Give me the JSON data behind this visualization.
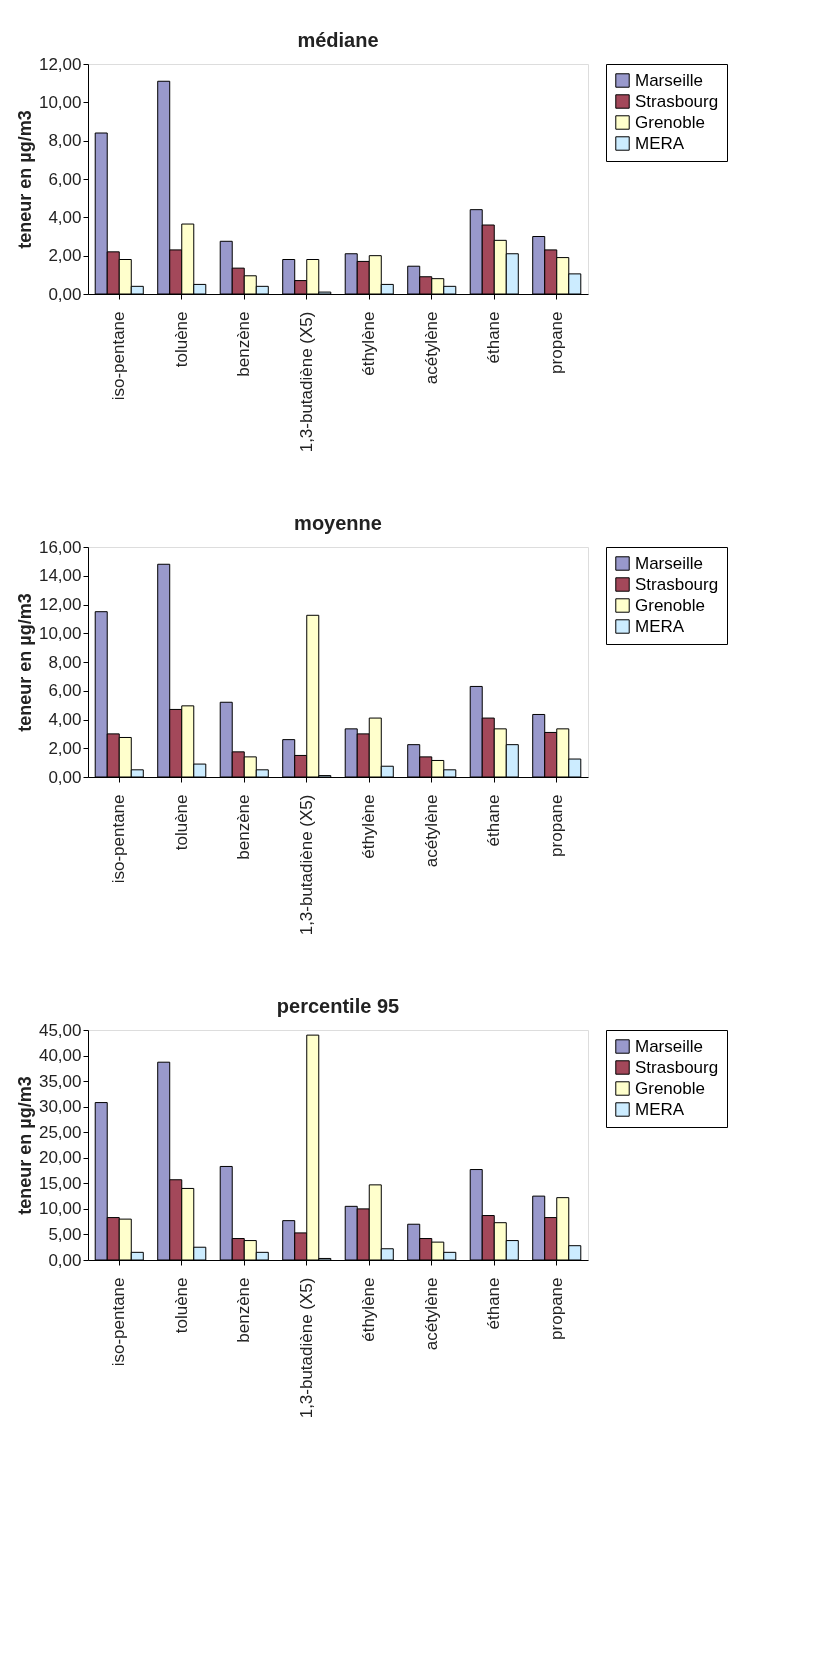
{
  "chart_data": [
    {
      "type": "bar",
      "title": "médiane",
      "ylabel": "teneur en µg/m3",
      "categories": [
        "iso-pentane",
        "toluène",
        "benzène",
        "1,3-butadiène (X5)",
        "éthylène",
        "acétylène",
        "éthane",
        "propane"
      ],
      "ylim": [
        0,
        12
      ],
      "yticks": [
        {
          "value": 0,
          "label": "0,00"
        },
        {
          "value": 2,
          "label": "2,00"
        },
        {
          "value": 4,
          "label": "4,00"
        },
        {
          "value": 6,
          "label": "6,00"
        },
        {
          "value": 8,
          "label": "8,00"
        },
        {
          "value": 10,
          "label": "10,00"
        },
        {
          "value": 12,
          "label": "12,00"
        }
      ],
      "grid": false,
      "legend": "right",
      "series": [
        {
          "name": "Marseille",
          "color": "#9999cc",
          "values": [
            8.4,
            11.1,
            2.75,
            1.8,
            2.1,
            1.45,
            4.4,
            3.0
          ]
        },
        {
          "name": "Strasbourg",
          "color": "#a3485a",
          "values": [
            2.2,
            2.3,
            1.35,
            0.7,
            1.7,
            0.9,
            3.6,
            2.3
          ]
        },
        {
          "name": "Grenoble",
          "color": "#ffffcc",
          "values": [
            1.8,
            3.65,
            0.95,
            1.8,
            2.0,
            0.8,
            2.8,
            1.9
          ]
        },
        {
          "name": "MERA",
          "color": "#ccecff",
          "values": [
            0.4,
            0.5,
            0.4,
            0.1,
            0.5,
            0.4,
            2.1,
            1.05
          ]
        }
      ]
    },
    {
      "type": "bar",
      "title": "moyenne",
      "ylabel": "teneur en µg/m3",
      "categories": [
        "iso-pentane",
        "toluène",
        "benzène",
        "1,3-butadiène (X5)",
        "éthylène",
        "acétylène",
        "éthane",
        "propane"
      ],
      "ylim": [
        0,
        16
      ],
      "yticks": [
        {
          "value": 0,
          "label": "0,00"
        },
        {
          "value": 2,
          "label": "2,00"
        },
        {
          "value": 4,
          "label": "4,00"
        },
        {
          "value": 6,
          "label": "6,00"
        },
        {
          "value": 8,
          "label": "8,00"
        },
        {
          "value": 10,
          "label": "10,00"
        },
        {
          "value": 12,
          "label": "12,00"
        },
        {
          "value": 14,
          "label": "14,00"
        },
        {
          "value": 16,
          "label": "16,00"
        }
      ],
      "grid": false,
      "legend": "right",
      "series": [
        {
          "name": "Marseille",
          "color": "#9999cc",
          "values": [
            11.5,
            14.8,
            5.2,
            2.6,
            3.35,
            2.25,
            6.3,
            4.35
          ]
        },
        {
          "name": "Strasbourg",
          "color": "#a3485a",
          "values": [
            3.0,
            4.7,
            1.75,
            1.5,
            3.0,
            1.4,
            4.1,
            3.1
          ]
        },
        {
          "name": "Grenoble",
          "color": "#ffffcc",
          "values": [
            2.75,
            4.95,
            1.4,
            11.25,
            4.1,
            1.15,
            3.35,
            3.35
          ]
        },
        {
          "name": "MERA",
          "color": "#ccecff",
          "values": [
            0.5,
            0.9,
            0.5,
            0.1,
            0.75,
            0.5,
            2.25,
            1.25
          ]
        }
      ]
    },
    {
      "type": "bar",
      "title": "percentile 95",
      "ylabel": "teneur en µg/m3",
      "categories": [
        "iso-pentane",
        "toluène",
        "benzène",
        "1,3-butadiène (X5)",
        "éthylène",
        "acétylène",
        "éthane",
        "propane"
      ],
      "ylim": [
        0,
        45
      ],
      "yticks": [
        {
          "value": 0,
          "label": "0,00"
        },
        {
          "value": 5,
          "label": "5,00"
        },
        {
          "value": 10,
          "label": "10,00"
        },
        {
          "value": 15,
          "label": "15,00"
        },
        {
          "value": 20,
          "label": "20,00"
        },
        {
          "value": 25,
          "label": "25,00"
        },
        {
          "value": 30,
          "label": "30,00"
        },
        {
          "value": 35,
          "label": "35,00"
        },
        {
          "value": 40,
          "label": "40,00"
        },
        {
          "value": 45,
          "label": "45,00"
        }
      ],
      "grid": false,
      "legend": "right",
      "series": [
        {
          "name": "Marseille",
          "color": "#9999cc",
          "values": [
            30.8,
            38.7,
            18.3,
            7.7,
            10.5,
            7.0,
            17.7,
            12.5
          ]
        },
        {
          "name": "Strasbourg",
          "color": "#a3485a",
          "values": [
            8.3,
            15.7,
            4.2,
            5.3,
            10.0,
            4.2,
            8.7,
            8.3
          ]
        },
        {
          "name": "Grenoble",
          "color": "#ffffcc",
          "values": [
            8.0,
            14.0,
            3.8,
            44.0,
            14.7,
            3.5,
            7.3,
            12.2
          ]
        },
        {
          "name": "MERA",
          "color": "#ccecff",
          "values": [
            1.5,
            2.5,
            1.5,
            0.3,
            2.2,
            1.5,
            3.8,
            2.8
          ]
        }
      ]
    }
  ]
}
